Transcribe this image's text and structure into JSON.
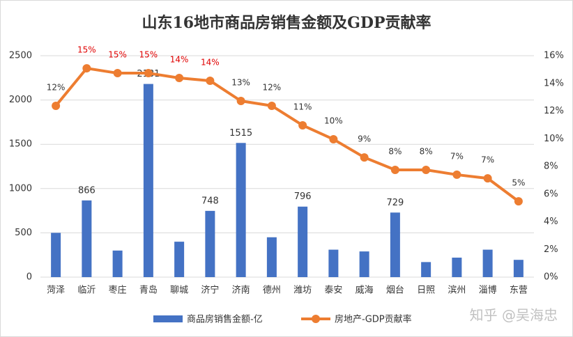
{
  "chart_data": {
    "type": "bar-line",
    "title": "山东16地市商品房销售金额及GDP贡献率",
    "categories": [
      "菏泽",
      "临沂",
      "枣庄",
      "青岛",
      "聊城",
      "济宁",
      "济南",
      "德州",
      "潍坊",
      "泰安",
      "威海",
      "烟台",
      "日照",
      "滨州",
      "淄博",
      "东营"
    ],
    "series": [
      {
        "name": "商品房销售金额-亿",
        "type": "bar",
        "color": "#4472c4",
        "values": [
          500,
          866,
          300,
          2181,
          400,
          748,
          1515,
          450,
          796,
          310,
          290,
          729,
          170,
          220,
          310,
          195
        ],
        "value_labels": [
          null,
          "866",
          null,
          "2181",
          null,
          "748",
          "1515",
          null,
          "796",
          null,
          null,
          "729",
          null,
          null,
          null,
          null
        ]
      },
      {
        "name": "房地产-GDP贡献率",
        "type": "line",
        "axis": "y2",
        "color": "#ed7d31",
        "values": [
          12.38,
          15.09,
          14.74,
          14.74,
          14.39,
          14.19,
          12.73,
          12.38,
          10.97,
          9.96,
          8.65,
          7.75,
          7.75,
          7.4,
          7.14,
          5.48
        ],
        "value_labels": [
          "12%",
          "15%",
          "15%",
          "15%",
          "14%",
          "14%",
          "13%",
          "12%",
          "11%",
          "10%",
          "9%",
          "8%",
          "8%",
          "7%",
          "7%",
          "5%"
        ],
        "value_label_colors": [
          "#333333",
          "#e00000",
          "#e00000",
          "#e00000",
          "#e00000",
          "#e00000",
          "#333333",
          "#333333",
          "#333333",
          "#333333",
          "#333333",
          "#333333",
          "#333333",
          "#333333",
          "#333333",
          "#333333"
        ]
      }
    ],
    "ylim": [
      0,
      2500
    ],
    "yticks": [
      0,
      500,
      1000,
      1500,
      2000,
      2500
    ],
    "y2lim": [
      0,
      16
    ],
    "y2ticks": [
      {
        "value": 0,
        "label": "0%"
      },
      {
        "value": 2,
        "label": "2%"
      },
      {
        "value": 4,
        "label": "4%"
      },
      {
        "value": 6,
        "label": "6%"
      },
      {
        "value": 8,
        "label": "8%"
      },
      {
        "value": 10,
        "label": "10%"
      },
      {
        "value": 12,
        "label": "12%"
      },
      {
        "value": 14,
        "label": "14%"
      },
      {
        "value": 16,
        "label": "16%"
      }
    ],
    "grid": true,
    "legend": "bottom",
    "watermark": "知乎 @吴海忠"
  }
}
